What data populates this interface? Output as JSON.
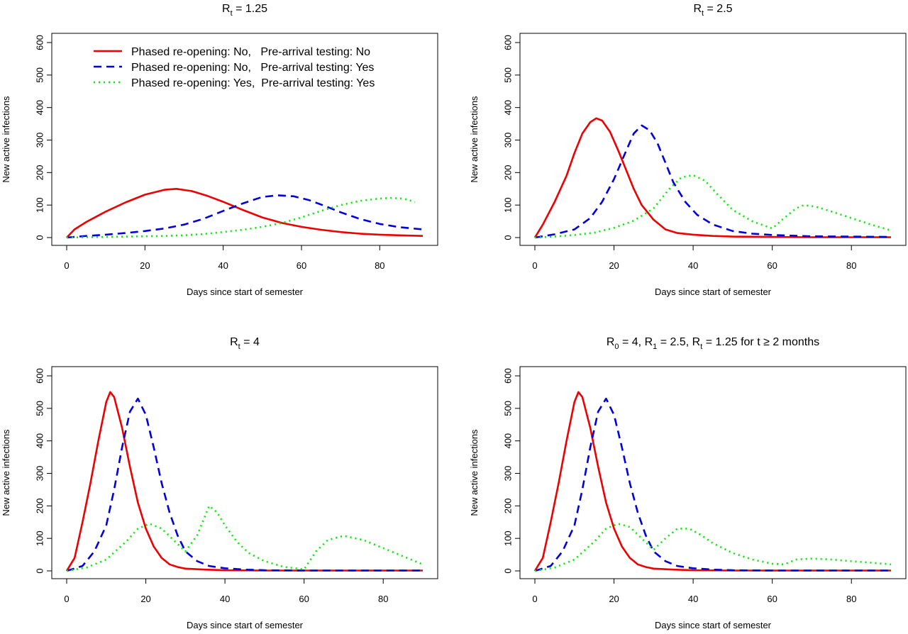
{
  "colors": {
    "red": "#ee0000",
    "blue": "#0000dd",
    "green": "#00ee00"
  },
  "legend": {
    "entries": [
      {
        "series": "No/No",
        "label": "Phased re-opening: No,   Pre-arrival testing: No",
        "color": "#ee0000",
        "dash": "solid"
      },
      {
        "series": "No/Yes",
        "label": "Phased re-opening: No,   Pre-arrival testing: Yes",
        "color": "#0000dd",
        "dash": "dashed"
      },
      {
        "series": "Yes/Yes",
        "label": "Phased re-opening: Yes,  Pre-arrival testing: Yes",
        "color": "#00ee00",
        "dash": "dotted"
      }
    ]
  },
  "chart_data": [
    {
      "type": "line",
      "title": {
        "base": "R",
        "sub": "t",
        "rest": " = 1.25"
      },
      "xlabel": "Days since start of semester",
      "ylabel": "New active infections",
      "xlim": [
        0,
        91
      ],
      "ylim": [
        0,
        600
      ],
      "xticks": [
        0,
        20,
        40,
        60,
        80
      ],
      "yticks": [
        0,
        100,
        200,
        300,
        400,
        500,
        600
      ],
      "series": [
        {
          "key": "No/No",
          "color": "#ee0000",
          "dash": "solid",
          "x": [
            0,
            2,
            5,
            10,
            15,
            20,
            25,
            28,
            32,
            36,
            40,
            45,
            50,
            55,
            60,
            65,
            70,
            75,
            80,
            85,
            91
          ],
          "y": [
            0,
            25,
            48,
            80,
            108,
            132,
            147,
            150,
            143,
            128,
            110,
            85,
            62,
            45,
            33,
            24,
            17,
            12,
            9,
            7,
            5
          ]
        },
        {
          "key": "No/Yes",
          "color": "#0000dd",
          "dash": "dashed",
          "x": [
            0,
            5,
            10,
            15,
            20,
            25,
            30,
            35,
            40,
            45,
            50,
            54,
            58,
            62,
            66,
            70,
            75,
            80,
            85,
            91
          ],
          "y": [
            0,
            5,
            9,
            14,
            20,
            28,
            40,
            58,
            82,
            105,
            125,
            130,
            127,
            115,
            97,
            78,
            57,
            42,
            32,
            25
          ]
        },
        {
          "key": "Yes/Yes",
          "color": "#00ee00",
          "dash": "dotted",
          "x": [
            0,
            5,
            10,
            15,
            20,
            25,
            30,
            35,
            40,
            45,
            50,
            55,
            60,
            65,
            70,
            75,
            80,
            83,
            86,
            89
          ],
          "y": [
            0,
            1,
            2,
            3,
            4,
            5,
            7,
            11,
            17,
            24,
            33,
            45,
            62,
            82,
            100,
            113,
            120,
            122,
            120,
            110
          ]
        }
      ]
    },
    {
      "type": "line",
      "title": {
        "base": "R",
        "sub": "t",
        "rest": " = 2.5"
      },
      "xlabel": "Days since start of semester",
      "ylabel": "New active infections",
      "xlim": [
        0,
        90
      ],
      "ylim": [
        0,
        600
      ],
      "xticks": [
        0,
        20,
        40,
        60,
        80
      ],
      "yticks": [
        0,
        100,
        200,
        300,
        400,
        500,
        600
      ],
      "series": [
        {
          "key": "No/No",
          "color": "#ee0000",
          "dash": "solid",
          "x": [
            0,
            2,
            5,
            8,
            10,
            12,
            14,
            15.5,
            17,
            19,
            21,
            23,
            25,
            27,
            30,
            33,
            36,
            40,
            45,
            50,
            60,
            70,
            80,
            90
          ],
          "y": [
            0,
            40,
            110,
            190,
            260,
            320,
            355,
            367,
            360,
            325,
            270,
            210,
            150,
            100,
            55,
            25,
            14,
            9,
            5,
            3,
            2,
            1,
            1,
            1
          ]
        },
        {
          "key": "No/Yes",
          "color": "#0000dd",
          "dash": "dashed",
          "x": [
            0,
            5,
            10,
            14,
            17,
            20,
            23,
            25,
            27,
            29,
            31,
            33,
            35,
            38,
            41,
            45,
            50,
            55,
            60,
            70,
            80,
            90
          ],
          "y": [
            0,
            10,
            25,
            60,
            110,
            180,
            265,
            320,
            345,
            330,
            290,
            230,
            170,
            110,
            70,
            40,
            20,
            12,
            8,
            4,
            3,
            2
          ]
        },
        {
          "key": "Yes/Yes",
          "color": "#00ee00",
          "dash": "dotted",
          "x": [
            0,
            5,
            10,
            15,
            20,
            25,
            30,
            34,
            37,
            40,
            43,
            46,
            50,
            55,
            60,
            63,
            66,
            68,
            71,
            75,
            80,
            85,
            90
          ],
          "y": [
            0,
            3,
            8,
            15,
            30,
            52,
            90,
            150,
            185,
            192,
            175,
            135,
            85,
            50,
            28,
            60,
            90,
            100,
            95,
            80,
            60,
            40,
            22
          ]
        }
      ]
    },
    {
      "type": "line",
      "title": {
        "base": "R",
        "sub": "t",
        "rest": " = 4"
      },
      "xlabel": "Days since start of semester",
      "ylabel": "New active infections",
      "xlim": [
        0,
        90
      ],
      "ylim": [
        0,
        600
      ],
      "xticks": [
        0,
        20,
        40,
        60,
        80
      ],
      "yticks": [
        0,
        100,
        200,
        300,
        400,
        500,
        600
      ],
      "series": [
        {
          "key": "No/No",
          "color": "#ee0000",
          "dash": "solid",
          "x": [
            0,
            2,
            4,
            6,
            8,
            10,
            11,
            12,
            14,
            16,
            18,
            20,
            22,
            24,
            26,
            28,
            30,
            35,
            40,
            50,
            60,
            70,
            80,
            90
          ],
          "y": [
            0,
            40,
            150,
            270,
            400,
            520,
            550,
            535,
            440,
            320,
            210,
            130,
            75,
            40,
            20,
            12,
            7,
            4,
            2,
            1,
            1,
            1,
            1,
            1
          ]
        },
        {
          "key": "No/Yes",
          "color": "#0000dd",
          "dash": "dashed",
          "x": [
            0,
            4,
            7,
            10,
            12,
            14,
            16,
            18,
            20,
            22,
            24,
            26,
            28,
            30,
            33,
            36,
            40,
            45,
            50,
            60,
            70,
            80,
            90
          ],
          "y": [
            0,
            15,
            60,
            140,
            250,
            380,
            490,
            530,
            480,
            380,
            270,
            180,
            110,
            60,
            30,
            15,
            8,
            4,
            2,
            1,
            1,
            1,
            1
          ]
        },
        {
          "key": "Yes/Yes",
          "color": "#00ee00",
          "dash": "dotted",
          "x": [
            0,
            5,
            10,
            15,
            18,
            21,
            24,
            27,
            30,
            33,
            36,
            38,
            40,
            43,
            46,
            50,
            55,
            60,
            63,
            66,
            70,
            75,
            80,
            85,
            90
          ],
          "y": [
            0,
            10,
            35,
            90,
            130,
            145,
            130,
            95,
            60,
            110,
            200,
            180,
            140,
            90,
            55,
            30,
            12,
            5,
            60,
            95,
            108,
            95,
            70,
            45,
            20
          ]
        }
      ]
    },
    {
      "type": "line",
      "title": {
        "segments": [
          {
            "base": "R",
            "sub": "0",
            "rest": " = 4,  "
          },
          {
            "base": "R",
            "sub": "1",
            "rest": " = 2.5,  "
          },
          {
            "base": "R",
            "sub": "t",
            "rest": " = 1.25 for t ≥ 2 months"
          }
        ]
      },
      "xlabel": "Days since start of semester",
      "ylabel": "New active infections",
      "xlim": [
        0,
        90
      ],
      "ylim": [
        0,
        600
      ],
      "xticks": [
        0,
        20,
        40,
        60,
        80
      ],
      "yticks": [
        0,
        100,
        200,
        300,
        400,
        500,
        600
      ],
      "series": [
        {
          "key": "No/No",
          "color": "#ee0000",
          "dash": "solid",
          "x": [
            0,
            2,
            4,
            6,
            8,
            10,
            11,
            12,
            14,
            16,
            18,
            20,
            22,
            24,
            26,
            28,
            30,
            35,
            40,
            50,
            60,
            70,
            80,
            90
          ],
          "y": [
            0,
            40,
            150,
            270,
            400,
            520,
            550,
            535,
            440,
            320,
            210,
            130,
            75,
            40,
            20,
            12,
            7,
            4,
            2,
            1,
            1,
            1,
            1,
            1
          ]
        },
        {
          "key": "No/Yes",
          "color": "#0000dd",
          "dash": "dashed",
          "x": [
            0,
            4,
            7,
            10,
            12,
            14,
            16,
            18,
            20,
            22,
            24,
            26,
            28,
            30,
            33,
            36,
            40,
            45,
            50,
            60,
            70,
            80,
            90
          ],
          "y": [
            0,
            15,
            60,
            140,
            250,
            380,
            490,
            530,
            480,
            380,
            270,
            180,
            110,
            60,
            30,
            15,
            8,
            4,
            2,
            1,
            1,
            1,
            1
          ]
        },
        {
          "key": "Yes/Yes",
          "color": "#00ee00",
          "dash": "dotted",
          "x": [
            0,
            5,
            10,
            15,
            18,
            21,
            24,
            27,
            30,
            33,
            36,
            39,
            42,
            45,
            50,
            55,
            60,
            63,
            66,
            70,
            75,
            80,
            85,
            90
          ],
          "y": [
            0,
            10,
            35,
            90,
            130,
            145,
            135,
            100,
            65,
            100,
            130,
            130,
            110,
            85,
            55,
            35,
            22,
            20,
            35,
            38,
            35,
            30,
            25,
            20
          ]
        }
      ]
    }
  ]
}
